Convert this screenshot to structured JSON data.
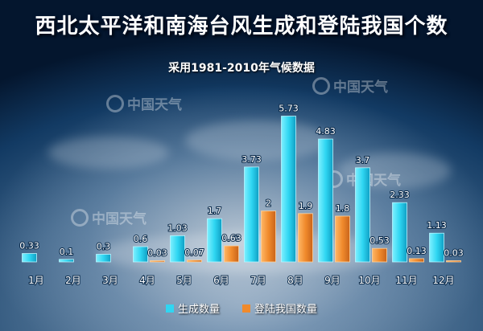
{
  "title": "西北太平洋和南海台风生成和登陆我国个数",
  "subtitle": "采用1981-2010年气候数据",
  "watermark": "中国天气",
  "colors": {
    "formed": "#2fd6f2",
    "landed": "#f08a2c"
  },
  "chart_data": {
    "type": "bar",
    "categories": [
      "1月",
      "2月",
      "3月",
      "4月",
      "5月",
      "6月",
      "7月",
      "8月",
      "9月",
      "10月",
      "11月",
      "12月"
    ],
    "series": [
      {
        "name": "生成数量",
        "values": [
          0.33,
          0.1,
          0.3,
          0.6,
          1.03,
          1.7,
          3.73,
          5.73,
          4.83,
          3.7,
          2.33,
          1.13
        ]
      },
      {
        "name": "登陆我国数量",
        "values": [
          0,
          0,
          0,
          0.03,
          0.07,
          0.63,
          2,
          1.9,
          1.8,
          0.53,
          0.13,
          0.03
        ]
      }
    ],
    "value_labels": [
      [
        "0.33",
        "0.1",
        "0.3",
        "0.6",
        "1.03",
        "1.7",
        "3.73",
        "5.73",
        "4.83",
        "3.7",
        "2.33",
        "1.13"
      ],
      [
        "",
        "",
        "",
        "0.03",
        "0.07",
        "0.63",
        "2",
        "1.9",
        "1.8",
        "0.53",
        "0.13",
        "0.03"
      ]
    ],
    "ylim": [
      0,
      6
    ],
    "grid": false,
    "legend": "bottom-center"
  }
}
